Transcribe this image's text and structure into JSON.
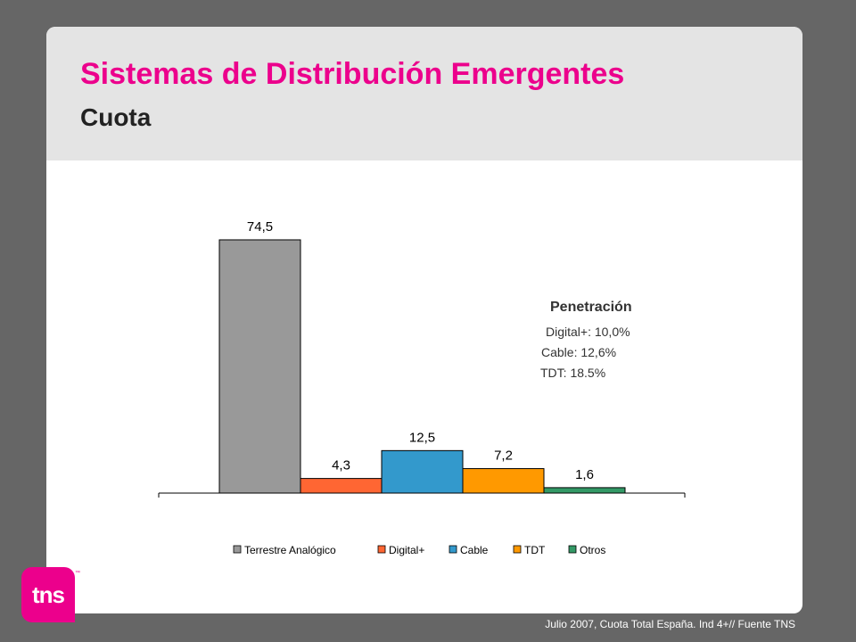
{
  "header": {
    "title": "Sistemas de Distribución Emergentes",
    "subtitle": "Cuota"
  },
  "chart_data": {
    "type": "bar",
    "categories": [
      "Terrestre Analógico",
      "Digital+",
      "Cable",
      "TDT",
      "Otros"
    ],
    "values": [
      74.5,
      4.3,
      12.5,
      7.2,
      1.6
    ],
    "value_labels": [
      "74,5",
      "4,3",
      "12,5",
      "7,2",
      "1,6"
    ],
    "colors": [
      "#999999",
      "#ff6633",
      "#3399cc",
      "#ff9900",
      "#339966"
    ],
    "ylim": [
      0,
      80
    ],
    "grid": false,
    "legend_position": "bottom",
    "xlabel": "",
    "ylabel": ""
  },
  "penetracion": {
    "title": "Penetración",
    "lines": [
      "Digital+: 10,0%",
      "Cable: 12,6%",
      "TDT: 18.5%"
    ]
  },
  "logo": {
    "text": "tns",
    "tm": "™"
  },
  "footer": "Julio 2007, Cuota Total España. Ind 4+// Fuente TNS"
}
